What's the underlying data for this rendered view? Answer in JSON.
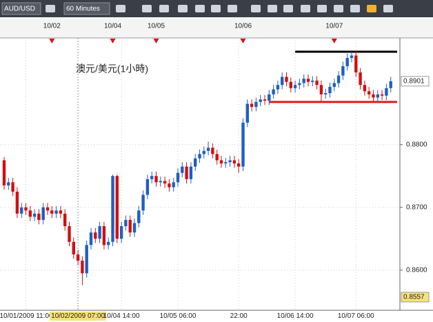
{
  "toolbar": {
    "symbol": "AUD/USD",
    "timeframe": "60 Minutes"
  },
  "chart_data": {
    "type": "candlestick",
    "annotation": "澳元/美元(1小時)",
    "up_color": "#1f5fbf",
    "down_color": "#d01010",
    "categories": [
      null,
      null,
      null,
      null,
      null,
      "10/01/2009 11:00",
      null,
      null,
      null,
      null,
      null,
      null,
      null,
      null,
      null,
      null,
      null,
      "10/02/2009 07:00",
      null,
      null,
      null,
      null,
      null,
      null,
      null,
      null,
      null,
      "10/04 14:00",
      null,
      null,
      null,
      null,
      null,
      null,
      null,
      null,
      null,
      null,
      null,
      null,
      "10/05 06:00",
      null,
      null,
      null,
      null,
      null,
      null,
      null,
      null,
      null,
      null,
      null,
      null,
      null,
      "22:00",
      null,
      null,
      null,
      null,
      null,
      null,
      null,
      null,
      null,
      null,
      null,
      null,
      "10/06 14:00",
      null,
      null,
      null,
      null,
      null,
      null,
      null,
      null,
      null,
      null,
      null,
      null,
      null,
      "10/07 06:00",
      null,
      null,
      null,
      null,
      null,
      null,
      null,
      null
    ],
    "open": [
      0.8775,
      0.8735,
      0.874,
      0.8725,
      0.869,
      0.87,
      0.8695,
      0.8685,
      0.869,
      0.868,
      0.87,
      0.8695,
      0.869,
      0.8695,
      0.869,
      0.867,
      0.8645,
      0.8625,
      0.8615,
      0.8595,
      0.864,
      0.866,
      0.865,
      0.867,
      0.864,
      0.8645,
      0.875,
      0.865,
      0.867,
      0.868,
      0.866,
      0.8675,
      0.8695,
      0.872,
      0.8745,
      0.875,
      0.874,
      0.8742,
      0.8738,
      0.8732,
      0.874,
      0.8755,
      0.8765,
      0.8745,
      0.8765,
      0.8778,
      0.8785,
      0.879,
      0.8795,
      0.8785,
      0.8775,
      0.877,
      0.8772,
      0.8775,
      0.877,
      0.8765,
      0.8835,
      0.8865,
      0.886,
      0.8868,
      0.8872,
      0.887,
      0.888,
      0.8888,
      0.8895,
      0.8908,
      0.89,
      0.889,
      0.8895,
      0.8898,
      0.8905,
      0.89,
      0.8902,
      0.8895,
      0.888,
      0.8882,
      0.8892,
      0.8898,
      0.891,
      0.8925,
      0.8938,
      0.8942,
      0.8915,
      0.8895,
      0.8885,
      0.888,
      0.8875,
      0.888,
      0.8878,
      0.889
    ],
    "high": [
      0.878,
      0.8747,
      0.8747,
      0.8732,
      0.8707,
      0.8707,
      0.8702,
      0.8697,
      0.8697,
      0.8707,
      0.8707,
      0.8702,
      0.8702,
      0.8702,
      0.8697,
      0.8677,
      0.8652,
      0.8632,
      0.8622,
      0.8647,
      0.8667,
      0.8667,
      0.8677,
      0.8677,
      0.8652,
      0.8752,
      0.8752,
      0.8677,
      0.8687,
      0.8687,
      0.8682,
      0.8702,
      0.8727,
      0.8752,
      0.8757,
      0.8757,
      0.8749,
      0.8749,
      0.8745,
      0.8747,
      0.8762,
      0.8772,
      0.8772,
      0.8772,
      0.8785,
      0.8792,
      0.8797,
      0.8805,
      0.8802,
      0.8792,
      0.8782,
      0.8779,
      0.8782,
      0.8782,
      0.8777,
      0.8842,
      0.8872,
      0.8872,
      0.8875,
      0.8879,
      0.8879,
      0.8887,
      0.8895,
      0.8902,
      0.8915,
      0.8915,
      0.8907,
      0.8902,
      0.8905,
      0.8912,
      0.8912,
      0.8909,
      0.8909,
      0.8902,
      0.8889,
      0.8899,
      0.8905,
      0.8917,
      0.8932,
      0.8945,
      0.8948,
      0.8949,
      0.8922,
      0.8902,
      0.8892,
      0.8887,
      0.8887,
      0.8887,
      0.8897,
      0.8908
    ],
    "low": [
      0.8728,
      0.8728,
      0.8718,
      0.8683,
      0.8683,
      0.8688,
      0.8678,
      0.8678,
      0.8673,
      0.8673,
      0.8688,
      0.8683,
      0.8683,
      0.8683,
      0.8663,
      0.8638,
      0.8618,
      0.8608,
      0.8576,
      0.8588,
      0.8633,
      0.8643,
      0.8643,
      0.8633,
      0.8633,
      0.8638,
      0.8643,
      0.8643,
      0.8663,
      0.8653,
      0.8653,
      0.8668,
      0.8688,
      0.8713,
      0.8738,
      0.8733,
      0.8733,
      0.8731,
      0.8725,
      0.8725,
      0.8733,
      0.8748,
      0.8738,
      0.8738,
      0.8758,
      0.8771,
      0.8778,
      0.8783,
      0.8778,
      0.8768,
      0.8763,
      0.8763,
      0.8765,
      0.8763,
      0.8755,
      0.8758,
      0.8828,
      0.8853,
      0.8853,
      0.8861,
      0.8863,
      0.8863,
      0.8873,
      0.8881,
      0.8888,
      0.8893,
      0.8883,
      0.8883,
      0.8888,
      0.8891,
      0.8893,
      0.8893,
      0.8888,
      0.8868,
      0.8873,
      0.8875,
      0.8885,
      0.8891,
      0.8903,
      0.8918,
      0.8931,
      0.8908,
      0.8888,
      0.8878,
      0.8873,
      0.8868,
      0.8868,
      0.8871,
      0.8871,
      0.8883
    ],
    "close": [
      0.8735,
      0.874,
      0.8725,
      0.869,
      0.87,
      0.8695,
      0.8685,
      0.869,
      0.868,
      0.87,
      0.8695,
      0.869,
      0.8695,
      0.869,
      0.867,
      0.8645,
      0.8625,
      0.8615,
      0.8595,
      0.864,
      0.866,
      0.865,
      0.867,
      0.864,
      0.8645,
      0.875,
      0.865,
      0.867,
      0.868,
      0.866,
      0.8675,
      0.8695,
      0.872,
      0.8745,
      0.875,
      0.874,
      0.8742,
      0.8738,
      0.8732,
      0.874,
      0.8755,
      0.8765,
      0.8745,
      0.8765,
      0.8778,
      0.8785,
      0.879,
      0.8795,
      0.8785,
      0.8775,
      0.877,
      0.8772,
      0.8775,
      0.877,
      0.8765,
      0.8835,
      0.8865,
      0.886,
      0.8868,
      0.8872,
      0.887,
      0.888,
      0.8888,
      0.8895,
      0.8908,
      0.89,
      0.889,
      0.8895,
      0.8898,
      0.8905,
      0.89,
      0.8902,
      0.8895,
      0.888,
      0.8882,
      0.8892,
      0.8898,
      0.891,
      0.8925,
      0.8938,
      0.8942,
      0.8915,
      0.8895,
      0.8885,
      0.888,
      0.8875,
      0.888,
      0.8878,
      0.889,
      0.8901
    ],
    "ylim": [
      0.8536,
      0.897
    ],
    "yticks": [
      {
        "value": 0.86,
        "label": "0.8600"
      },
      {
        "value": 0.87,
        "label": "0.8700"
      },
      {
        "value": 0.88,
        "label": "0.8800"
      }
    ],
    "last_price": {
      "value": 0.8901,
      "label": "0.8901"
    },
    "crosshair": {
      "category_index": 17,
      "value": 0.8557,
      "label": "0.8557"
    },
    "session_markers": [
      {
        "index": 11,
        "label": "10/02"
      },
      {
        "index": 25,
        "label": "10/04"
      },
      {
        "index": 35,
        "label": "10/05"
      },
      {
        "index": 55,
        "label": "10/06"
      },
      {
        "index": 76,
        "label": "10/07"
      }
    ],
    "lines": [
      {
        "value": 0.8948,
        "from_index": 67,
        "color": "#000000"
      },
      {
        "value": 0.8868,
        "from_index": 61,
        "color": "#e01818"
      }
    ],
    "grid": true
  }
}
